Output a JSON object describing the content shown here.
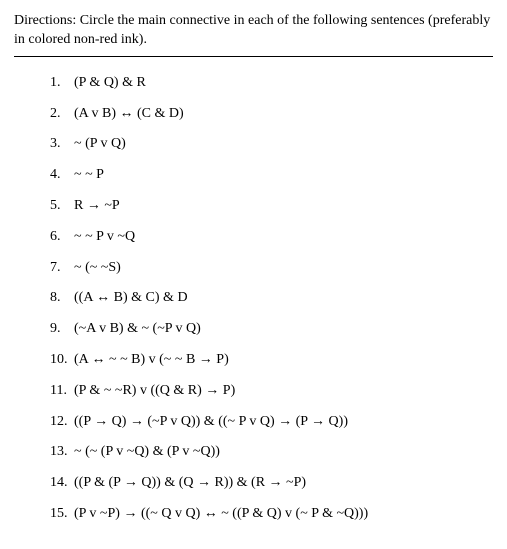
{
  "directions": "Directions: Circle the main connective in each of the following sentences (preferably in colored non-red ink).",
  "items": [
    {
      "number": "1.",
      "formula": "(P & Q) & R"
    },
    {
      "number": "2.",
      "formula": "(A v B) ↔ (C & D)"
    },
    {
      "number": "3.",
      "formula": "~ (P v Q)"
    },
    {
      "number": "4.",
      "formula": "~ ~ P"
    },
    {
      "number": "5.",
      "formula": "R → ~P"
    },
    {
      "number": "6.",
      "formula": "~ ~ P v ~Q"
    },
    {
      "number": "7.",
      "formula": "~ (~ ~S)"
    },
    {
      "number": "8.",
      "formula": "((A ↔ B) & C) & D"
    },
    {
      "number": "9.",
      "formula": "(~A v B) & ~ (~P v Q)"
    },
    {
      "number": "10.",
      "formula": "(A ↔ ~ ~ B) v (~ ~ B → P)"
    },
    {
      "number": "11.",
      "formula": "(P & ~ ~R) v ((Q & R) → P)"
    },
    {
      "number": "12.",
      "formula": "((P → Q) → (~P v Q)) & ((~ P v Q) → (P → Q))"
    },
    {
      "number": "13.",
      "formula": "~ (~ (P v ~Q) & (P v ~Q))"
    },
    {
      "number": "14.",
      "formula": "((P & (P → Q)) & (Q → R)) & (R → ~P)"
    },
    {
      "number": "15.",
      "formula": "(P v ~P) → ((~ Q v Q) ↔ ~ ((P & Q) v (~ P & ~Q)))"
    }
  ]
}
